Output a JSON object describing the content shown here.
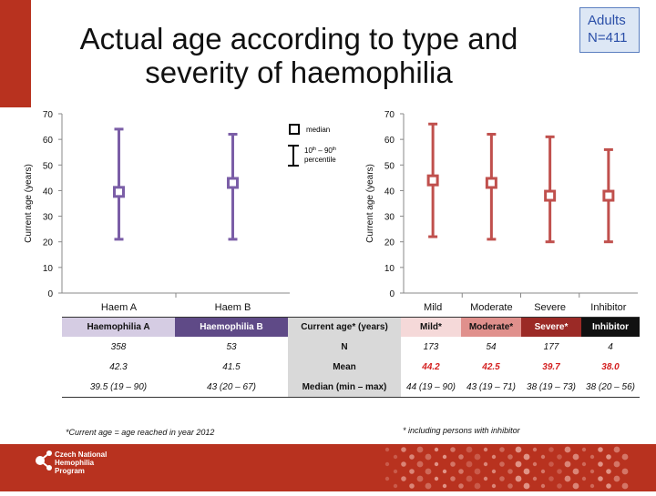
{
  "title_line1": "Actual age according to type and",
  "title_line2": "severity of haemophilia",
  "badge": {
    "line1": "Adults",
    "line2": "N=411"
  },
  "legend": {
    "median": "median",
    "pct_line1_a": "10",
    "pct_line1_sup1": "th",
    "pct_line1_b": " – 90",
    "pct_line1_sup2": "th",
    "pct_line2": "percentile"
  },
  "colors": {
    "purple": "#7b5ea7",
    "red": "#c0504d",
    "accent": "#b8321f"
  },
  "chart_data": [
    {
      "type": "errorbar",
      "ylabel": "Current age (years)",
      "ylim": [
        0,
        70
      ],
      "yticks": [
        0,
        10,
        20,
        30,
        40,
        50,
        60,
        70
      ],
      "categories": [
        "Haem A",
        "Haem B"
      ],
      "median": [
        39.5,
        43
      ],
      "p10": [
        21,
        21
      ],
      "p90": [
        64,
        62
      ]
    },
    {
      "type": "errorbar",
      "ylabel": "Current age (years)",
      "ylim": [
        0,
        70
      ],
      "yticks": [
        0,
        10,
        20,
        30,
        40,
        50,
        60,
        70
      ],
      "categories": [
        "Mild",
        "Moderate",
        "Severe",
        "Inhibitor"
      ],
      "median": [
        44,
        43,
        38,
        38
      ],
      "p10": [
        22,
        21,
        20,
        20
      ],
      "p90": [
        66,
        62,
        61,
        56
      ]
    }
  ],
  "table": {
    "headers": [
      "Haemophilia A",
      "Haemophilia B",
      "Current age* (years)",
      "Mild*",
      "Moderate*",
      "Severe*",
      "Inhibitor"
    ],
    "header_colors": [
      "#d5cce3",
      "#5f4a87",
      "#d9d9d9",
      "#f5d9d9",
      "#e0908c",
      "#9b2a26",
      "#111111"
    ],
    "header_text_colors": [
      "#111111",
      "#ffffff",
      "#111111",
      "#111111",
      "#111111",
      "#ffffff",
      "#ffffff"
    ],
    "rows": [
      {
        "label": "N",
        "values": [
          "358",
          "53",
          "173",
          "54",
          "177",
          "4"
        ]
      },
      {
        "label": "Mean",
        "values": [
          "42.3",
          "41.5",
          "44.2",
          "42.5",
          "39.7",
          "38.0"
        ]
      },
      {
        "label": "Median (min – max)",
        "values": [
          "39.5 (19 – 90)",
          "43 (20 – 67)",
          "44 (19 – 90)",
          "43 (19 – 71)",
          "38 (19 – 73)",
          "38 (20 – 56)"
        ]
      }
    ]
  },
  "footnote_left": "*Current age = age reached in year 2012",
  "footnote_right": "* including persons with inhibitor",
  "logo": {
    "line1": "Czech National",
    "line2": "Hemophilia",
    "line3": "Program"
  }
}
